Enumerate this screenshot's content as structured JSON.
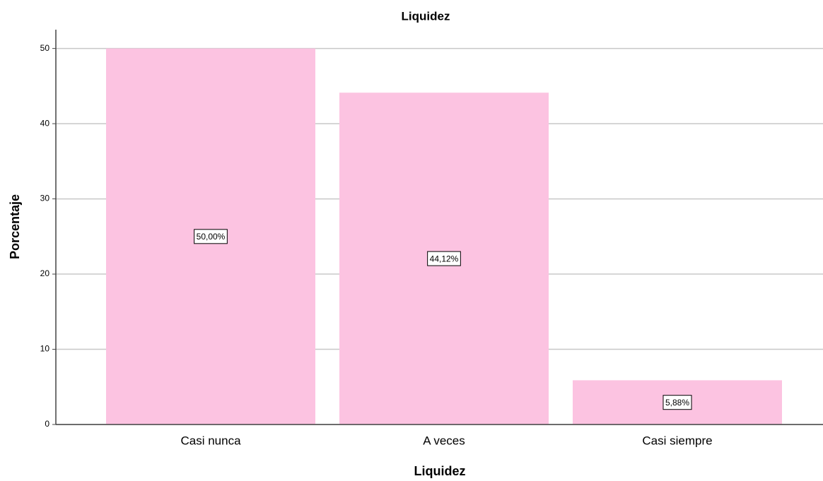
{
  "chart_data": {
    "type": "bar",
    "title": "Liquidez",
    "x_label": "Liquidez",
    "y_label": "Porcentaje",
    "categories": [
      "Casi nunca",
      "A veces",
      "Casi siempre"
    ],
    "values": [
      50,
      44.12,
      5.88
    ],
    "value_labels": [
      "50,00%",
      "44,12%",
      "5,88%"
    ],
    "color": "#fcc3e1",
    "ylim": [
      0,
      52.5
    ],
    "yticks": [
      0,
      10,
      20,
      30,
      40,
      50
    ],
    "grid": true
  }
}
